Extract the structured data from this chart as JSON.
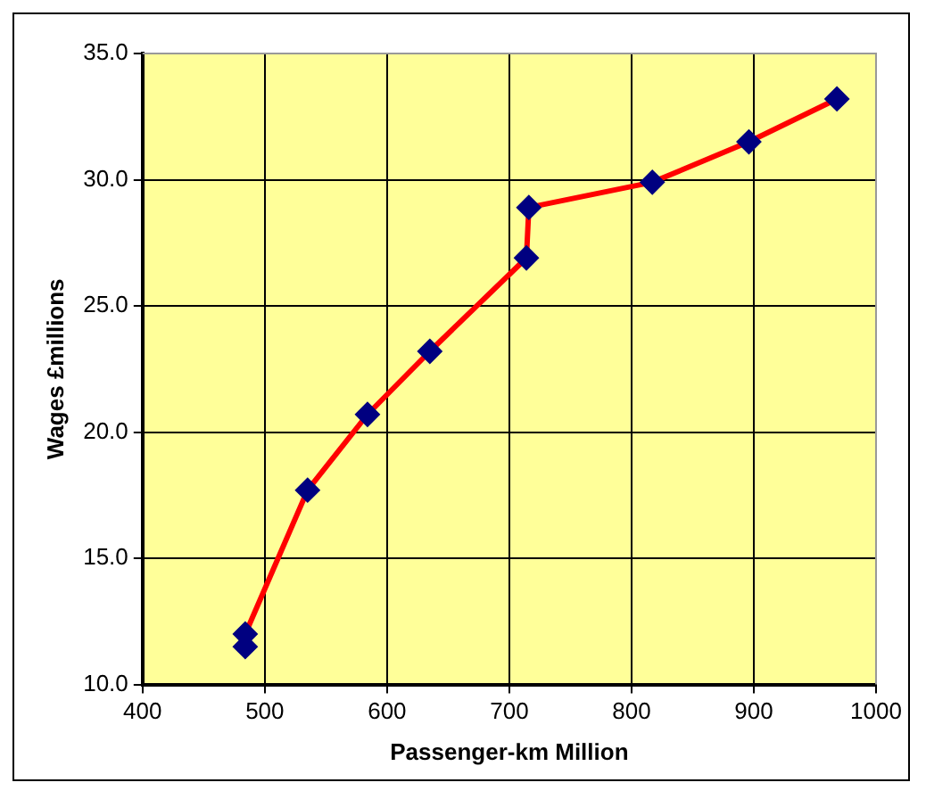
{
  "chart_data": {
    "type": "line",
    "xlabel": "Passenger-km Million",
    "ylabel": "Wages £millions",
    "x": [
      484,
      484,
      535,
      584,
      635,
      714,
      716,
      817,
      896,
      968
    ],
    "series": [
      {
        "color": "#ff0000",
        "marker": "none",
        "values": [
          11.5,
          12.0,
          17.7,
          20.7,
          23.2,
          26.9,
          28.9,
          29.9,
          31.5,
          33.2
        ]
      },
      {
        "type": "scatter",
        "color": "#000080",
        "marker": "diamond",
        "values": [
          11.5,
          12.0,
          17.7,
          20.7,
          23.2,
          26.9,
          28.9,
          29.9,
          31.5,
          33.2
        ]
      }
    ],
    "xlim": [
      400,
      1000
    ],
    "xticks": [
      400,
      500,
      600,
      700,
      800,
      900,
      1000
    ],
    "ylim": [
      10,
      35
    ],
    "yticks": [
      {
        "value": 10,
        "label": "10.0"
      },
      {
        "value": 15,
        "label": "15.0"
      },
      {
        "value": 20,
        "label": "20.0"
      },
      {
        "value": 25,
        "label": "25.0"
      },
      {
        "value": 30,
        "label": "30.0"
      },
      {
        "value": 35,
        "label": "35.0"
      }
    ],
    "grid": true,
    "legend": false
  }
}
